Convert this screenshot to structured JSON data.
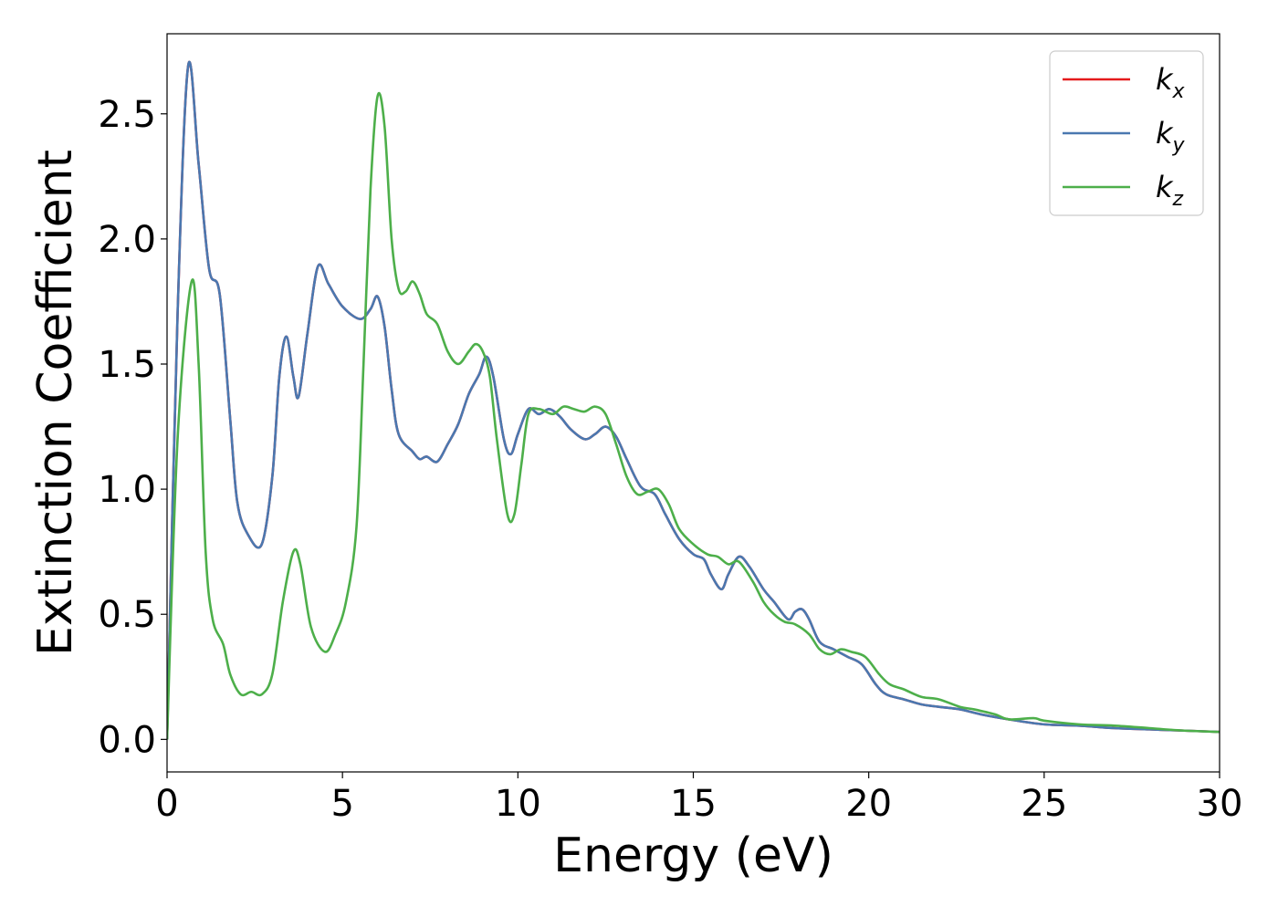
{
  "chart_data": {
    "type": "line",
    "title": "",
    "xlabel": "Energy (eV)",
    "ylabel": "Extinction Coefficient",
    "xlim": [
      0,
      30
    ],
    "ylim": [
      -0.13,
      2.82
    ],
    "x_ticks": [
      0,
      5,
      10,
      15,
      20,
      25,
      30
    ],
    "y_ticks": [
      0.0,
      0.5,
      1.0,
      1.5,
      2.0,
      2.5
    ],
    "x_tick_labels": [
      "0",
      "5",
      "10",
      "15",
      "20",
      "25",
      "30"
    ],
    "y_tick_labels": [
      "0.0",
      "0.5",
      "1.0",
      "1.5",
      "2.0",
      "2.5"
    ],
    "grid": false,
    "legend_position": "top-right",
    "series": [
      {
        "name": "k_x",
        "label_base": "k",
        "label_sub": "x",
        "color": "#e41a1c",
        "points": [
          [
            0,
            0
          ],
          [
            0.3,
            1.7
          ],
          [
            0.6,
            2.69
          ],
          [
            0.9,
            2.3
          ],
          [
            1.2,
            1.88
          ],
          [
            1.5,
            1.78
          ],
          [
            1.8,
            1.28
          ],
          [
            2.0,
            0.95
          ],
          [
            2.3,
            0.82
          ],
          [
            2.7,
            0.78
          ],
          [
            3.0,
            1.05
          ],
          [
            3.2,
            1.45
          ],
          [
            3.4,
            1.61
          ],
          [
            3.6,
            1.45
          ],
          [
            3.75,
            1.37
          ],
          [
            4.0,
            1.62
          ],
          [
            4.3,
            1.89
          ],
          [
            4.6,
            1.82
          ],
          [
            5.0,
            1.73
          ],
          [
            5.5,
            1.68
          ],
          [
            5.8,
            1.72
          ],
          [
            6.0,
            1.77
          ],
          [
            6.2,
            1.65
          ],
          [
            6.4,
            1.4
          ],
          [
            6.6,
            1.22
          ],
          [
            7.0,
            1.15
          ],
          [
            7.2,
            1.12
          ],
          [
            7.4,
            1.13
          ],
          [
            7.7,
            1.11
          ],
          [
            8.0,
            1.18
          ],
          [
            8.3,
            1.26
          ],
          [
            8.6,
            1.38
          ],
          [
            8.9,
            1.46
          ],
          [
            9.1,
            1.53
          ],
          [
            9.3,
            1.45
          ],
          [
            9.6,
            1.2
          ],
          [
            9.8,
            1.14
          ],
          [
            10.0,
            1.22
          ],
          [
            10.3,
            1.32
          ],
          [
            10.6,
            1.3
          ],
          [
            10.9,
            1.32
          ],
          [
            11.2,
            1.29
          ],
          [
            11.5,
            1.24
          ],
          [
            11.9,
            1.2
          ],
          [
            12.2,
            1.22
          ],
          [
            12.5,
            1.25
          ],
          [
            12.8,
            1.21
          ],
          [
            13.1,
            1.12
          ],
          [
            13.5,
            1.01
          ],
          [
            13.9,
            0.98
          ],
          [
            14.2,
            0.9
          ],
          [
            14.6,
            0.8
          ],
          [
            15.0,
            0.74
          ],
          [
            15.3,
            0.72
          ],
          [
            15.5,
            0.66
          ],
          [
            15.8,
            0.6
          ],
          [
            16.0,
            0.66
          ],
          [
            16.3,
            0.73
          ],
          [
            16.6,
            0.69
          ],
          [
            17.0,
            0.6
          ],
          [
            17.3,
            0.55
          ],
          [
            17.7,
            0.48
          ],
          [
            17.9,
            0.51
          ],
          [
            18.1,
            0.52
          ],
          [
            18.3,
            0.48
          ],
          [
            18.6,
            0.39
          ],
          [
            19.0,
            0.36
          ],
          [
            19.4,
            0.33
          ],
          [
            19.8,
            0.3
          ],
          [
            20.2,
            0.22
          ],
          [
            20.5,
            0.18
          ],
          [
            21.0,
            0.16
          ],
          [
            21.5,
            0.14
          ],
          [
            22.0,
            0.13
          ],
          [
            22.6,
            0.12
          ],
          [
            23.2,
            0.1
          ],
          [
            24.0,
            0.08
          ],
          [
            25.0,
            0.06
          ],
          [
            26.0,
            0.055
          ],
          [
            27.0,
            0.045
          ],
          [
            28.0,
            0.04
          ],
          [
            29.0,
            0.035
          ],
          [
            30.0,
            0.03
          ]
        ]
      },
      {
        "name": "k_y",
        "label_base": "k",
        "label_sub": "y",
        "color": "#4a78b0",
        "points": [
          [
            0,
            0
          ],
          [
            0.3,
            1.7
          ],
          [
            0.6,
            2.69
          ],
          [
            0.9,
            2.3
          ],
          [
            1.2,
            1.88
          ],
          [
            1.5,
            1.78
          ],
          [
            1.8,
            1.28
          ],
          [
            2.0,
            0.95
          ],
          [
            2.3,
            0.82
          ],
          [
            2.7,
            0.78
          ],
          [
            3.0,
            1.05
          ],
          [
            3.2,
            1.45
          ],
          [
            3.4,
            1.61
          ],
          [
            3.6,
            1.45
          ],
          [
            3.75,
            1.37
          ],
          [
            4.0,
            1.62
          ],
          [
            4.3,
            1.89
          ],
          [
            4.6,
            1.82
          ],
          [
            5.0,
            1.73
          ],
          [
            5.5,
            1.68
          ],
          [
            5.8,
            1.72
          ],
          [
            6.0,
            1.77
          ],
          [
            6.2,
            1.65
          ],
          [
            6.4,
            1.4
          ],
          [
            6.6,
            1.22
          ],
          [
            7.0,
            1.15
          ],
          [
            7.2,
            1.12
          ],
          [
            7.4,
            1.13
          ],
          [
            7.7,
            1.11
          ],
          [
            8.0,
            1.18
          ],
          [
            8.3,
            1.26
          ],
          [
            8.6,
            1.38
          ],
          [
            8.9,
            1.46
          ],
          [
            9.1,
            1.53
          ],
          [
            9.3,
            1.45
          ],
          [
            9.6,
            1.2
          ],
          [
            9.8,
            1.14
          ],
          [
            10.0,
            1.22
          ],
          [
            10.3,
            1.32
          ],
          [
            10.6,
            1.3
          ],
          [
            10.9,
            1.32
          ],
          [
            11.2,
            1.29
          ],
          [
            11.5,
            1.24
          ],
          [
            11.9,
            1.2
          ],
          [
            12.2,
            1.22
          ],
          [
            12.5,
            1.25
          ],
          [
            12.8,
            1.21
          ],
          [
            13.1,
            1.12
          ],
          [
            13.5,
            1.01
          ],
          [
            13.9,
            0.98
          ],
          [
            14.2,
            0.9
          ],
          [
            14.6,
            0.8
          ],
          [
            15.0,
            0.74
          ],
          [
            15.3,
            0.72
          ],
          [
            15.5,
            0.66
          ],
          [
            15.8,
            0.6
          ],
          [
            16.0,
            0.66
          ],
          [
            16.3,
            0.73
          ],
          [
            16.6,
            0.69
          ],
          [
            17.0,
            0.6
          ],
          [
            17.3,
            0.55
          ],
          [
            17.7,
            0.48
          ],
          [
            17.9,
            0.51
          ],
          [
            18.1,
            0.52
          ],
          [
            18.3,
            0.48
          ],
          [
            18.6,
            0.39
          ],
          [
            19.0,
            0.36
          ],
          [
            19.4,
            0.33
          ],
          [
            19.8,
            0.3
          ],
          [
            20.2,
            0.22
          ],
          [
            20.5,
            0.18
          ],
          [
            21.0,
            0.16
          ],
          [
            21.5,
            0.14
          ],
          [
            22.0,
            0.13
          ],
          [
            22.6,
            0.12
          ],
          [
            23.2,
            0.1
          ],
          [
            24.0,
            0.08
          ],
          [
            25.0,
            0.06
          ],
          [
            26.0,
            0.055
          ],
          [
            27.0,
            0.045
          ],
          [
            28.0,
            0.04
          ],
          [
            29.0,
            0.035
          ],
          [
            30.0,
            0.03
          ]
        ]
      },
      {
        "name": "k_z",
        "label_base": "k",
        "label_sub": "z",
        "color": "#4daf4a",
        "points": [
          [
            0,
            0
          ],
          [
            0.3,
            1.2
          ],
          [
            0.7,
            1.83
          ],
          [
            0.9,
            1.5
          ],
          [
            1.1,
            0.75
          ],
          [
            1.3,
            0.48
          ],
          [
            1.6,
            0.38
          ],
          [
            1.8,
            0.26
          ],
          [
            2.1,
            0.18
          ],
          [
            2.4,
            0.19
          ],
          [
            2.7,
            0.18
          ],
          [
            3.0,
            0.26
          ],
          [
            3.3,
            0.55
          ],
          [
            3.6,
            0.75
          ],
          [
            3.8,
            0.7
          ],
          [
            4.1,
            0.45
          ],
          [
            4.5,
            0.35
          ],
          [
            4.8,
            0.42
          ],
          [
            5.1,
            0.55
          ],
          [
            5.4,
            0.85
          ],
          [
            5.6,
            1.5
          ],
          [
            5.8,
            2.2
          ],
          [
            6.0,
            2.57
          ],
          [
            6.2,
            2.45
          ],
          [
            6.4,
            2.0
          ],
          [
            6.6,
            1.8
          ],
          [
            6.8,
            1.79
          ],
          [
            7.0,
            1.83
          ],
          [
            7.2,
            1.78
          ],
          [
            7.4,
            1.7
          ],
          [
            7.7,
            1.66
          ],
          [
            8.0,
            1.55
          ],
          [
            8.3,
            1.5
          ],
          [
            8.6,
            1.55
          ],
          [
            8.8,
            1.58
          ],
          [
            9.0,
            1.55
          ],
          [
            9.2,
            1.45
          ],
          [
            9.4,
            1.2
          ],
          [
            9.7,
            0.9
          ],
          [
            9.9,
            0.9
          ],
          [
            10.1,
            1.1
          ],
          [
            10.3,
            1.3
          ],
          [
            10.6,
            1.32
          ],
          [
            11.0,
            1.3
          ],
          [
            11.3,
            1.33
          ],
          [
            11.6,
            1.32
          ],
          [
            11.9,
            1.31
          ],
          [
            12.2,
            1.33
          ],
          [
            12.5,
            1.3
          ],
          [
            12.8,
            1.18
          ],
          [
            13.1,
            1.05
          ],
          [
            13.4,
            0.98
          ],
          [
            13.7,
            0.99
          ],
          [
            14.0,
            1.0
          ],
          [
            14.3,
            0.94
          ],
          [
            14.6,
            0.84
          ],
          [
            15.0,
            0.78
          ],
          [
            15.4,
            0.74
          ],
          [
            15.7,
            0.73
          ],
          [
            16.0,
            0.7
          ],
          [
            16.3,
            0.71
          ],
          [
            16.7,
            0.63
          ],
          [
            17.0,
            0.55
          ],
          [
            17.3,
            0.5
          ],
          [
            17.6,
            0.47
          ],
          [
            17.9,
            0.46
          ],
          [
            18.3,
            0.42
          ],
          [
            18.6,
            0.36
          ],
          [
            18.9,
            0.34
          ],
          [
            19.2,
            0.36
          ],
          [
            19.5,
            0.35
          ],
          [
            19.9,
            0.33
          ],
          [
            20.3,
            0.26
          ],
          [
            20.6,
            0.22
          ],
          [
            21.0,
            0.2
          ],
          [
            21.5,
            0.17
          ],
          [
            22.0,
            0.16
          ],
          [
            22.6,
            0.13
          ],
          [
            23.0,
            0.12
          ],
          [
            23.6,
            0.1
          ],
          [
            24.0,
            0.08
          ],
          [
            24.7,
            0.085
          ],
          [
            25.0,
            0.075
          ],
          [
            26.0,
            0.06
          ],
          [
            27.0,
            0.055
          ],
          [
            28.0,
            0.045
          ],
          [
            29.0,
            0.035
          ],
          [
            30.0,
            0.03
          ]
        ]
      }
    ]
  }
}
